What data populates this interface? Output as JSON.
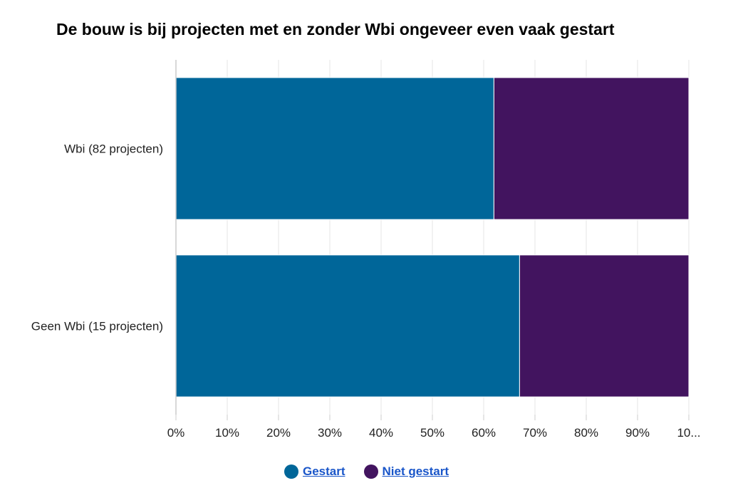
{
  "chart_data": {
    "type": "bar",
    "orientation": "horizontal",
    "stacked": true,
    "title": "De bouw is bij projecten met en zonder Wbi ongeveer even vaak gestart",
    "categories": [
      "Wbi (82 projecten)",
      "Geen Wbi (15 projecten)"
    ],
    "series": [
      {
        "name": "Gestart",
        "values": [
          62,
          67
        ],
        "color": "#006699"
      },
      {
        "name": "Niet gestart",
        "values": [
          38,
          33
        ],
        "color": "#42145f"
      }
    ],
    "x_ticks": [
      "0%",
      "10%",
      "20%",
      "30%",
      "40%",
      "50%",
      "60%",
      "70%",
      "80%",
      "90%",
      "10..."
    ],
    "xlim": [
      0,
      100
    ],
    "grid": true,
    "legend": "bottom-center"
  }
}
